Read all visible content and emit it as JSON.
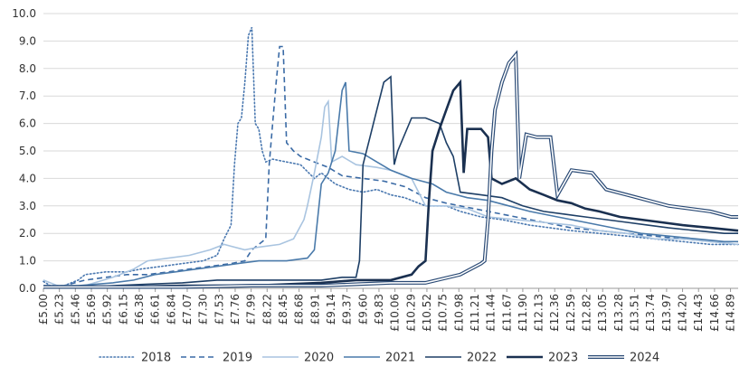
{
  "chart_data": {
    "type": "line",
    "title": "",
    "xlabel": "",
    "ylabel": "",
    "ylim": [
      0,
      10
    ],
    "yticks": [
      "0.0",
      "1.0",
      "2.0",
      "3.0",
      "4.0",
      "5.0",
      "6.0",
      "7.0",
      "8.0",
      "9.0",
      "10.0"
    ],
    "xrange": [
      5.0,
      15.0
    ],
    "xtick_values": [
      5.0,
      5.23,
      5.46,
      5.69,
      5.92,
      6.15,
      6.38,
      6.61,
      6.84,
      7.07,
      7.3,
      7.53,
      7.76,
      7.99,
      8.22,
      8.45,
      8.68,
      8.91,
      9.14,
      9.37,
      9.6,
      9.83,
      10.06,
      10.29,
      10.52,
      10.75,
      10.98,
      11.21,
      11.44,
      11.67,
      11.9,
      12.13,
      12.36,
      12.59,
      12.82,
      13.05,
      13.28,
      13.51,
      13.74,
      13.97,
      14.2,
      14.43,
      14.66,
      14.89
    ],
    "xtick_labels": [
      "£5.00",
      "£5.23",
      "£5.46",
      "£5.69",
      "£5.92",
      "£6.15",
      "£6.38",
      "£6.61",
      "£6.84",
      "£7.07",
      "£7.30",
      "£7.53",
      "£7.76",
      "£7.99",
      "£8.22",
      "£8.45",
      "£8.68",
      "£8.91",
      "£9.14",
      "£9.37",
      "£9.60",
      "£9.83",
      "£10.06",
      "£10.29",
      "£10.52",
      "£10.75",
      "£10.98",
      "£11.21",
      "£11.44",
      "£11.67",
      "£11.90",
      "£12.13",
      "£12.36",
      "£12.59",
      "£12.82",
      "£13.05",
      "£13.28",
      "£13.51",
      "£13.74",
      "£13.97",
      "£14.20",
      "£14.43",
      "£14.66",
      "£14.89"
    ],
    "grid": "horizontal",
    "legend": "bottom",
    "series": [
      {
        "name": "2018",
        "color": "#4a78b0",
        "style": "dotted",
        "points": [
          [
            5.0,
            0.25
          ],
          [
            5.1,
            0.1
          ],
          [
            5.3,
            0.1
          ],
          [
            5.5,
            0.3
          ],
          [
            5.6,
            0.5
          ],
          [
            5.9,
            0.6
          ],
          [
            6.2,
            0.6
          ],
          [
            6.4,
            0.7
          ],
          [
            6.7,
            0.8
          ],
          [
            7.0,
            0.9
          ],
          [
            7.3,
            1.0
          ],
          [
            7.5,
            1.2
          ],
          [
            7.6,
            1.8
          ],
          [
            7.7,
            2.3
          ],
          [
            7.75,
            4.5
          ],
          [
            7.8,
            6.0
          ],
          [
            7.85,
            6.2
          ],
          [
            7.9,
            7.5
          ],
          [
            7.95,
            9.2
          ],
          [
            8.0,
            9.5
          ],
          [
            8.05,
            6.0
          ],
          [
            8.1,
            5.8
          ],
          [
            8.15,
            5.0
          ],
          [
            8.2,
            4.6
          ],
          [
            8.3,
            4.7
          ],
          [
            8.5,
            4.6
          ],
          [
            8.7,
            4.5
          ],
          [
            8.9,
            4.0
          ],
          [
            9.0,
            4.2
          ],
          [
            9.2,
            3.8
          ],
          [
            9.4,
            3.6
          ],
          [
            9.6,
            3.5
          ],
          [
            9.8,
            3.6
          ],
          [
            10.0,
            3.4
          ],
          [
            10.2,
            3.3
          ],
          [
            10.5,
            3.0
          ],
          [
            10.8,
            3.0
          ],
          [
            11.0,
            2.8
          ],
          [
            11.3,
            2.6
          ],
          [
            11.6,
            2.5
          ],
          [
            12.0,
            2.3
          ],
          [
            12.3,
            2.2
          ],
          [
            12.6,
            2.1
          ],
          [
            13.0,
            2.0
          ],
          [
            13.4,
            1.9
          ],
          [
            13.8,
            1.8
          ],
          [
            14.2,
            1.7
          ],
          [
            14.6,
            1.6
          ],
          [
            15.0,
            1.6
          ]
        ]
      },
      {
        "name": "2019",
        "color": "#3a6aa5",
        "style": "dashed",
        "points": [
          [
            5.0,
            0.1
          ],
          [
            5.3,
            0.1
          ],
          [
            5.6,
            0.3
          ],
          [
            5.9,
            0.4
          ],
          [
            6.2,
            0.5
          ],
          [
            6.5,
            0.5
          ],
          [
            6.8,
            0.6
          ],
          [
            7.1,
            0.7
          ],
          [
            7.4,
            0.8
          ],
          [
            7.7,
            0.9
          ],
          [
            7.9,
            1.0
          ],
          [
            8.0,
            1.4
          ],
          [
            8.1,
            1.6
          ],
          [
            8.2,
            1.8
          ],
          [
            8.25,
            4.5
          ],
          [
            8.3,
            6.0
          ],
          [
            8.35,
            7.5
          ],
          [
            8.4,
            8.8
          ],
          [
            8.45,
            8.8
          ],
          [
            8.5,
            5.3
          ],
          [
            8.6,
            5.0
          ],
          [
            8.7,
            4.8
          ],
          [
            8.9,
            4.6
          ],
          [
            9.1,
            4.4
          ],
          [
            9.3,
            4.1
          ],
          [
            9.6,
            4.0
          ],
          [
            9.9,
            3.9
          ],
          [
            10.2,
            3.7
          ],
          [
            10.5,
            3.3
          ],
          [
            10.8,
            3.1
          ],
          [
            11.0,
            3.0
          ],
          [
            11.4,
            2.8
          ],
          [
            11.8,
            2.6
          ],
          [
            12.2,
            2.4
          ],
          [
            12.6,
            2.2
          ],
          [
            13.0,
            2.1
          ],
          [
            13.4,
            2.0
          ],
          [
            13.8,
            1.9
          ],
          [
            14.2,
            1.8
          ],
          [
            14.6,
            1.7
          ],
          [
            15.0,
            1.7
          ]
        ]
      },
      {
        "name": "2020",
        "color": "#a9c4e0",
        "style": "solid",
        "points": [
          [
            5.0,
            0.3
          ],
          [
            5.2,
            0.1
          ],
          [
            5.6,
            0.1
          ],
          [
            6.0,
            0.4
          ],
          [
            6.3,
            0.7
          ],
          [
            6.5,
            1.0
          ],
          [
            6.8,
            1.1
          ],
          [
            7.1,
            1.2
          ],
          [
            7.4,
            1.4
          ],
          [
            7.6,
            1.6
          ],
          [
            7.9,
            1.4
          ],
          [
            8.1,
            1.5
          ],
          [
            8.4,
            1.6
          ],
          [
            8.6,
            1.8
          ],
          [
            8.75,
            2.5
          ],
          [
            8.8,
            3.0
          ],
          [
            8.85,
            3.6
          ],
          [
            8.9,
            4.2
          ],
          [
            9.0,
            5.5
          ],
          [
            9.05,
            6.6
          ],
          [
            9.1,
            6.8
          ],
          [
            9.15,
            4.6
          ],
          [
            9.3,
            4.8
          ],
          [
            9.5,
            4.5
          ],
          [
            9.8,
            4.4
          ],
          [
            10.0,
            4.3
          ],
          [
            10.3,
            4.0
          ],
          [
            10.5,
            3.0
          ],
          [
            10.8,
            3.0
          ],
          [
            11.1,
            2.9
          ],
          [
            11.4,
            2.6
          ],
          [
            11.8,
            2.5
          ],
          [
            12.2,
            2.4
          ],
          [
            12.6,
            2.3
          ],
          [
            13.0,
            2.1
          ],
          [
            13.4,
            2.0
          ],
          [
            13.8,
            1.8
          ],
          [
            14.2,
            1.8
          ],
          [
            14.6,
            1.7
          ],
          [
            15.0,
            1.6
          ]
        ]
      },
      {
        "name": "2021",
        "color": "#4a7aaa",
        "style": "solid",
        "points": [
          [
            5.0,
            0.1
          ],
          [
            5.5,
            0.1
          ],
          [
            6.0,
            0.2
          ],
          [
            6.3,
            0.3
          ],
          [
            6.6,
            0.5
          ],
          [
            6.9,
            0.6
          ],
          [
            7.2,
            0.7
          ],
          [
            7.5,
            0.8
          ],
          [
            7.8,
            0.9
          ],
          [
            8.1,
            1.0
          ],
          [
            8.5,
            1.0
          ],
          [
            8.8,
            1.1
          ],
          [
            8.9,
            1.4
          ],
          [
            9.0,
            3.8
          ],
          [
            9.1,
            4.2
          ],
          [
            9.2,
            5.0
          ],
          [
            9.3,
            7.2
          ],
          [
            9.35,
            7.5
          ],
          [
            9.4,
            5.0
          ],
          [
            9.6,
            4.9
          ],
          [
            9.8,
            4.6
          ],
          [
            10.0,
            4.3
          ],
          [
            10.3,
            4.0
          ],
          [
            10.6,
            3.8
          ],
          [
            10.8,
            3.5
          ],
          [
            11.1,
            3.3
          ],
          [
            11.4,
            3.2
          ],
          [
            11.7,
            3.0
          ],
          [
            12.0,
            2.8
          ],
          [
            12.4,
            2.6
          ],
          [
            12.8,
            2.4
          ],
          [
            13.2,
            2.2
          ],
          [
            13.6,
            2.0
          ],
          [
            14.0,
            1.9
          ],
          [
            14.4,
            1.8
          ],
          [
            14.8,
            1.7
          ],
          [
            15.0,
            1.7
          ]
        ]
      },
      {
        "name": "2022",
        "color": "#1e3f66",
        "style": "solid",
        "points": [
          [
            5.0,
            0.05
          ],
          [
            5.5,
            0.05
          ],
          [
            6.0,
            0.1
          ],
          [
            6.5,
            0.15
          ],
          [
            7.0,
            0.2
          ],
          [
            7.5,
            0.3
          ],
          [
            8.0,
            0.3
          ],
          [
            8.5,
            0.3
          ],
          [
            9.0,
            0.3
          ],
          [
            9.3,
            0.4
          ],
          [
            9.5,
            0.4
          ],
          [
            9.55,
            1.0
          ],
          [
            9.6,
            4.5
          ],
          [
            9.7,
            5.5
          ],
          [
            9.8,
            6.5
          ],
          [
            9.9,
            7.5
          ],
          [
            10.0,
            7.7
          ],
          [
            10.05,
            4.5
          ],
          [
            10.1,
            5.0
          ],
          [
            10.3,
            6.2
          ],
          [
            10.5,
            6.2
          ],
          [
            10.7,
            6.0
          ],
          [
            10.8,
            5.3
          ],
          [
            10.9,
            4.8
          ],
          [
            11.0,
            3.5
          ],
          [
            11.3,
            3.4
          ],
          [
            11.6,
            3.3
          ],
          [
            11.9,
            3.0
          ],
          [
            12.2,
            2.8
          ],
          [
            12.5,
            2.7
          ],
          [
            12.8,
            2.6
          ],
          [
            13.1,
            2.5
          ],
          [
            13.4,
            2.4
          ],
          [
            13.7,
            2.3
          ],
          [
            14.0,
            2.2
          ],
          [
            14.4,
            2.1
          ],
          [
            14.8,
            2.0
          ],
          [
            15.0,
            2.0
          ]
        ]
      },
      {
        "name": "2023",
        "color": "#1a3050",
        "style": "solid-thick",
        "points": [
          [
            5.0,
            0.05
          ],
          [
            6.0,
            0.05
          ],
          [
            7.0,
            0.1
          ],
          [
            8.0,
            0.1
          ],
          [
            9.0,
            0.2
          ],
          [
            9.5,
            0.3
          ],
          [
            10.0,
            0.3
          ],
          [
            10.3,
            0.5
          ],
          [
            10.4,
            0.8
          ],
          [
            10.5,
            1.0
          ],
          [
            10.55,
            3.2
          ],
          [
            10.6,
            5.0
          ],
          [
            10.7,
            5.8
          ],
          [
            10.8,
            6.5
          ],
          [
            10.9,
            7.2
          ],
          [
            11.0,
            7.5
          ],
          [
            11.05,
            4.2
          ],
          [
            11.1,
            5.8
          ],
          [
            11.3,
            5.8
          ],
          [
            11.4,
            5.5
          ],
          [
            11.45,
            4.0
          ],
          [
            11.6,
            3.8
          ],
          [
            11.8,
            4.0
          ],
          [
            11.9,
            3.8
          ],
          [
            12.0,
            3.6
          ],
          [
            12.2,
            3.4
          ],
          [
            12.4,
            3.2
          ],
          [
            12.6,
            3.1
          ],
          [
            12.8,
            2.9
          ],
          [
            13.0,
            2.8
          ],
          [
            13.3,
            2.6
          ],
          [
            13.6,
            2.5
          ],
          [
            13.9,
            2.4
          ],
          [
            14.2,
            2.3
          ],
          [
            14.6,
            2.2
          ],
          [
            15.0,
            2.1
          ]
        ]
      },
      {
        "name": "2024",
        "color": "#2a4a75",
        "style": "double",
        "points": [
          [
            5.0,
            0.05
          ],
          [
            6.0,
            0.05
          ],
          [
            7.0,
            0.05
          ],
          [
            8.0,
            0.1
          ],
          [
            9.0,
            0.1
          ],
          [
            10.0,
            0.2
          ],
          [
            10.5,
            0.2
          ],
          [
            11.0,
            0.5
          ],
          [
            11.3,
            0.9
          ],
          [
            11.35,
            1.0
          ],
          [
            11.4,
            2.5
          ],
          [
            11.45,
            5.0
          ],
          [
            11.5,
            6.5
          ],
          [
            11.6,
            7.5
          ],
          [
            11.7,
            8.2
          ],
          [
            11.8,
            8.5
          ],
          [
            11.85,
            4.0
          ],
          [
            11.95,
            5.6
          ],
          [
            12.1,
            5.5
          ],
          [
            12.3,
            5.5
          ],
          [
            12.4,
            3.4
          ],
          [
            12.6,
            4.3
          ],
          [
            12.9,
            4.2
          ],
          [
            13.1,
            3.6
          ],
          [
            13.4,
            3.4
          ],
          [
            13.7,
            3.2
          ],
          [
            14.0,
            3.0
          ],
          [
            14.3,
            2.9
          ],
          [
            14.6,
            2.8
          ],
          [
            14.9,
            2.6
          ],
          [
            15.0,
            2.6
          ]
        ]
      }
    ]
  }
}
